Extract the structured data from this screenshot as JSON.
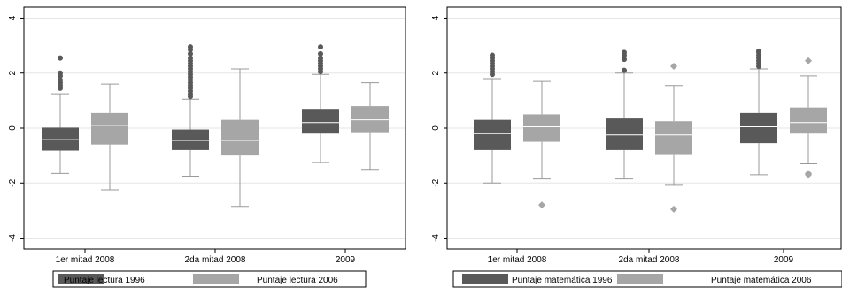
{
  "chart_data": [
    {
      "type": "box",
      "title": "",
      "xlabel": "",
      "ylabel": "",
      "ylim": [
        -4.4,
        4.4
      ],
      "yticks": [
        -4,
        -2,
        0,
        2,
        4
      ],
      "grid": true,
      "legend_position": "bottom",
      "categories": [
        "1er mitad 2008",
        "2da mitad 2008",
        "2009"
      ],
      "series": [
        {
          "name": "Puntaje lectura 1996",
          "color": "#595959",
          "boxes": [
            {
              "whislo": -1.65,
              "q1": -0.82,
              "med": -0.42,
              "q3": 0.02,
              "whishi": 1.25,
              "fliers": [
                1.45,
                1.55,
                1.65,
                1.75,
                1.9,
                2.0,
                2.55
              ]
            },
            {
              "whislo": -1.75,
              "q1": -0.8,
              "med": -0.45,
              "q3": -0.05,
              "whishi": 1.05,
              "fliers": [
                1.15,
                1.25,
                1.35,
                1.45,
                1.55,
                1.65,
                1.75,
                1.85,
                1.95,
                2.05,
                2.15,
                2.25,
                2.35,
                2.45,
                2.55,
                2.7,
                2.85,
                2.95
              ]
            },
            {
              "whislo": -1.25,
              "q1": -0.2,
              "med": 0.2,
              "q3": 0.7,
              "whishi": 1.95,
              "fliers": [
                2.05,
                2.15,
                2.25,
                2.35,
                2.45,
                2.55,
                2.7,
                2.95
              ]
            }
          ]
        },
        {
          "name": "Puntaje lectura 2006",
          "color": "#a6a6a6",
          "boxes": [
            {
              "whislo": -2.25,
              "q1": -0.6,
              "med": 0.1,
              "q3": 0.55,
              "whishi": 1.6,
              "fliers": []
            },
            {
              "whislo": -2.85,
              "q1": -1.0,
              "med": -0.45,
              "q3": 0.3,
              "whishi": 2.15,
              "fliers": []
            },
            {
              "whislo": -1.5,
              "q1": -0.15,
              "med": 0.3,
              "q3": 0.8,
              "whishi": 1.65,
              "fliers": []
            }
          ]
        }
      ]
    },
    {
      "type": "box",
      "title": "",
      "xlabel": "",
      "ylabel": "",
      "ylim": [
        -4.4,
        4.4
      ],
      "yticks": [
        -4,
        -2,
        0,
        2,
        4
      ],
      "grid": true,
      "legend_position": "bottom",
      "categories": [
        "1er mitad 2008",
        "2da mitad 2008",
        "2009"
      ],
      "series": [
        {
          "name": "Puntaje matemática 1996",
          "color": "#595959",
          "boxes": [
            {
              "whislo": -2.0,
              "q1": -0.8,
              "med": -0.2,
              "q3": 0.3,
              "whishi": 1.8,
              "fliers": [
                1.95,
                2.05,
                2.15,
                2.25,
                2.35,
                2.45,
                2.55,
                2.65
              ]
            },
            {
              "whislo": -1.85,
              "q1": -0.8,
              "med": -0.25,
              "q3": 0.35,
              "whishi": 2.0,
              "fliers": [
                2.1,
                2.5,
                2.65,
                2.75
              ]
            },
            {
              "whislo": -1.7,
              "q1": -0.55,
              "med": 0.05,
              "q3": 0.55,
              "whishi": 2.15,
              "fliers": [
                2.25,
                2.35,
                2.45,
                2.55,
                2.65,
                2.75,
                2.8
              ]
            }
          ]
        },
        {
          "name": "Puntaje matemática 2006",
          "color": "#a6a6a6",
          "boxes": [
            {
              "whislo": -1.85,
              "q1": -0.5,
              "med": 0.05,
              "q3": 0.5,
              "whishi": 1.7,
              "fliers": [
                -2.8
              ]
            },
            {
              "whislo": -2.05,
              "q1": -0.95,
              "med": -0.25,
              "q3": 0.25,
              "whishi": 1.55,
              "fliers": [
                2.25,
                -2.95
              ]
            },
            {
              "whislo": -1.3,
              "q1": -0.2,
              "med": 0.2,
              "q3": 0.75,
              "whishi": 1.9,
              "fliers": [
                2.45,
                -1.65,
                -1.7
              ]
            }
          ]
        }
      ]
    }
  ]
}
